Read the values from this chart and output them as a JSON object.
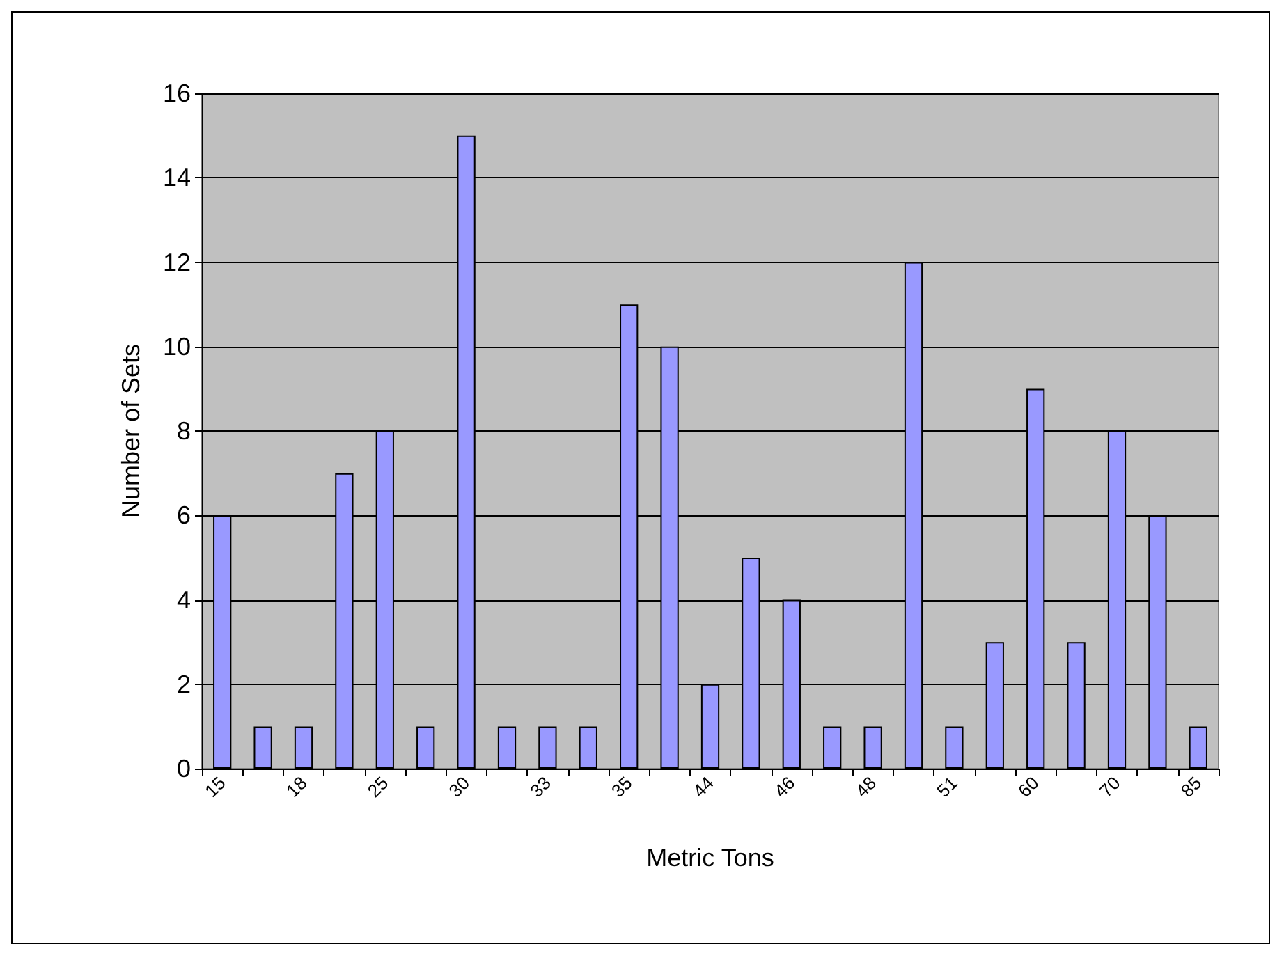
{
  "chart_data": {
    "type": "bar",
    "xlabel": "Metric Tons",
    "ylabel": "Number of Sets",
    "categories": [
      "15",
      null,
      "18",
      null,
      "25",
      null,
      "30",
      null,
      "33",
      null,
      "35",
      null,
      "44",
      null,
      "46",
      null,
      "48",
      null,
      "51",
      null,
      "60",
      null,
      "70",
      null,
      "85"
    ],
    "values": [
      6,
      1,
      1,
      7,
      8,
      1,
      15,
      1,
      1,
      1,
      11,
      10,
      2,
      5,
      4,
      1,
      1,
      12,
      1,
      3,
      9,
      3,
      8,
      6,
      1
    ],
    "color": "#9999ff",
    "ylim": [
      0,
      16
    ],
    "yticks": [
      0,
      2,
      4,
      6,
      8,
      10,
      12,
      14,
      16
    ],
    "grid": "y"
  }
}
